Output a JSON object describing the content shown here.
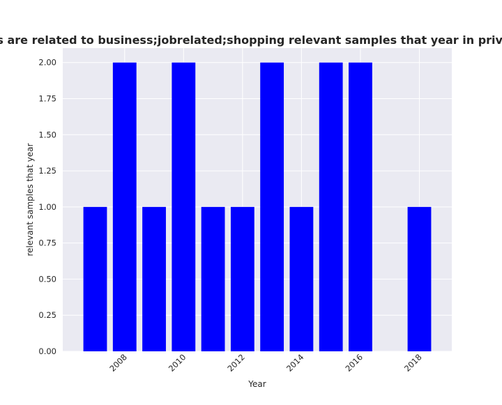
{
  "chart_data": {
    "type": "bar",
    "title": "egories are related to business;jobrelated;shopping relevant samples that year in privacy polic",
    "xlabel": "Year",
    "ylabel": "relevant samples that year",
    "x": [
      2007,
      2008,
      2009,
      2010,
      2011,
      2012,
      2013,
      2014,
      2015,
      2016,
      2018
    ],
    "values": [
      1,
      2,
      1,
      2,
      1,
      1,
      2,
      1,
      2,
      2,
      1
    ],
    "xlim": [
      2005.9,
      2019.1
    ],
    "ylim": [
      0,
      2.1
    ],
    "xticks": [
      2008,
      2010,
      2012,
      2014,
      2016,
      2018
    ],
    "yticks": [
      "0.00",
      "0.25",
      "0.50",
      "0.75",
      "1.00",
      "1.25",
      "1.50",
      "1.75",
      "2.00"
    ],
    "bar_color": "#0000ff",
    "plot_background": "#eaeaf2",
    "grid": true,
    "grid_color": "#ffffff"
  }
}
